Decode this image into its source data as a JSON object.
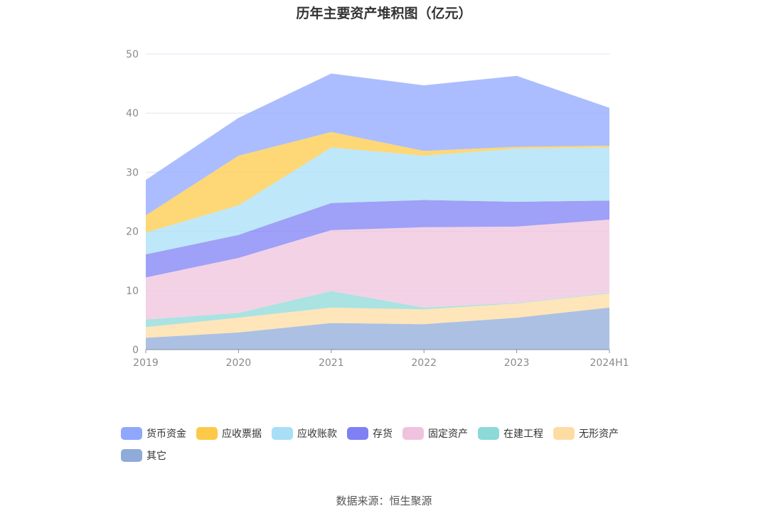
{
  "chart_data": {
    "type": "area",
    "stacked": true,
    "title": "历年主要资产堆积图（亿元）",
    "xlabel": "",
    "ylabel": "",
    "categories": [
      "2019",
      "2020",
      "2021",
      "2022",
      "2023",
      "2024H1"
    ],
    "ylim": [
      0,
      50
    ],
    "yticks": [
      0,
      10,
      20,
      30,
      40,
      50
    ],
    "grid": true,
    "legend_position": "bottom",
    "series": [
      {
        "name": "其它",
        "color": "#8fabd9",
        "values": [
          2.0,
          2.9,
          4.5,
          4.3,
          5.4,
          7.1
        ]
      },
      {
        "name": "无形资产",
        "color": "#fddca3",
        "values": [
          1.8,
          2.5,
          2.6,
          2.5,
          2.4,
          2.4
        ]
      },
      {
        "name": "在建工程",
        "color": "#8dd9d7",
        "values": [
          1.3,
          0.8,
          2.8,
          0.3,
          0.1,
          0.1
        ]
      },
      {
        "name": "固定资产",
        "color": "#efc3de",
        "values": [
          7.1,
          9.3,
          10.3,
          13.6,
          12.9,
          12.4
        ]
      },
      {
        "name": "存货",
        "color": "#7f80f4",
        "values": [
          3.9,
          3.9,
          4.6,
          4.6,
          4.2,
          3.2
        ]
      },
      {
        "name": "应收账款",
        "color": "#a8dff7",
        "values": [
          3.7,
          5.0,
          9.4,
          7.5,
          9.0,
          9.0
        ]
      },
      {
        "name": "应收票据",
        "color": "#fdc948",
        "values": [
          2.9,
          8.4,
          2.6,
          0.8,
          0.3,
          0.3
        ]
      },
      {
        "name": "货币资金",
        "color": "#8fa7fd",
        "values": [
          6.0,
          6.4,
          9.9,
          11.1,
          12.0,
          6.4
        ]
      }
    ]
  },
  "legend_order": [
    "货币资金",
    "应收票据",
    "应收账款",
    "存货",
    "固定资产",
    "在建工程",
    "无形资产",
    "其它"
  ],
  "source": "数据来源：恒生聚源"
}
